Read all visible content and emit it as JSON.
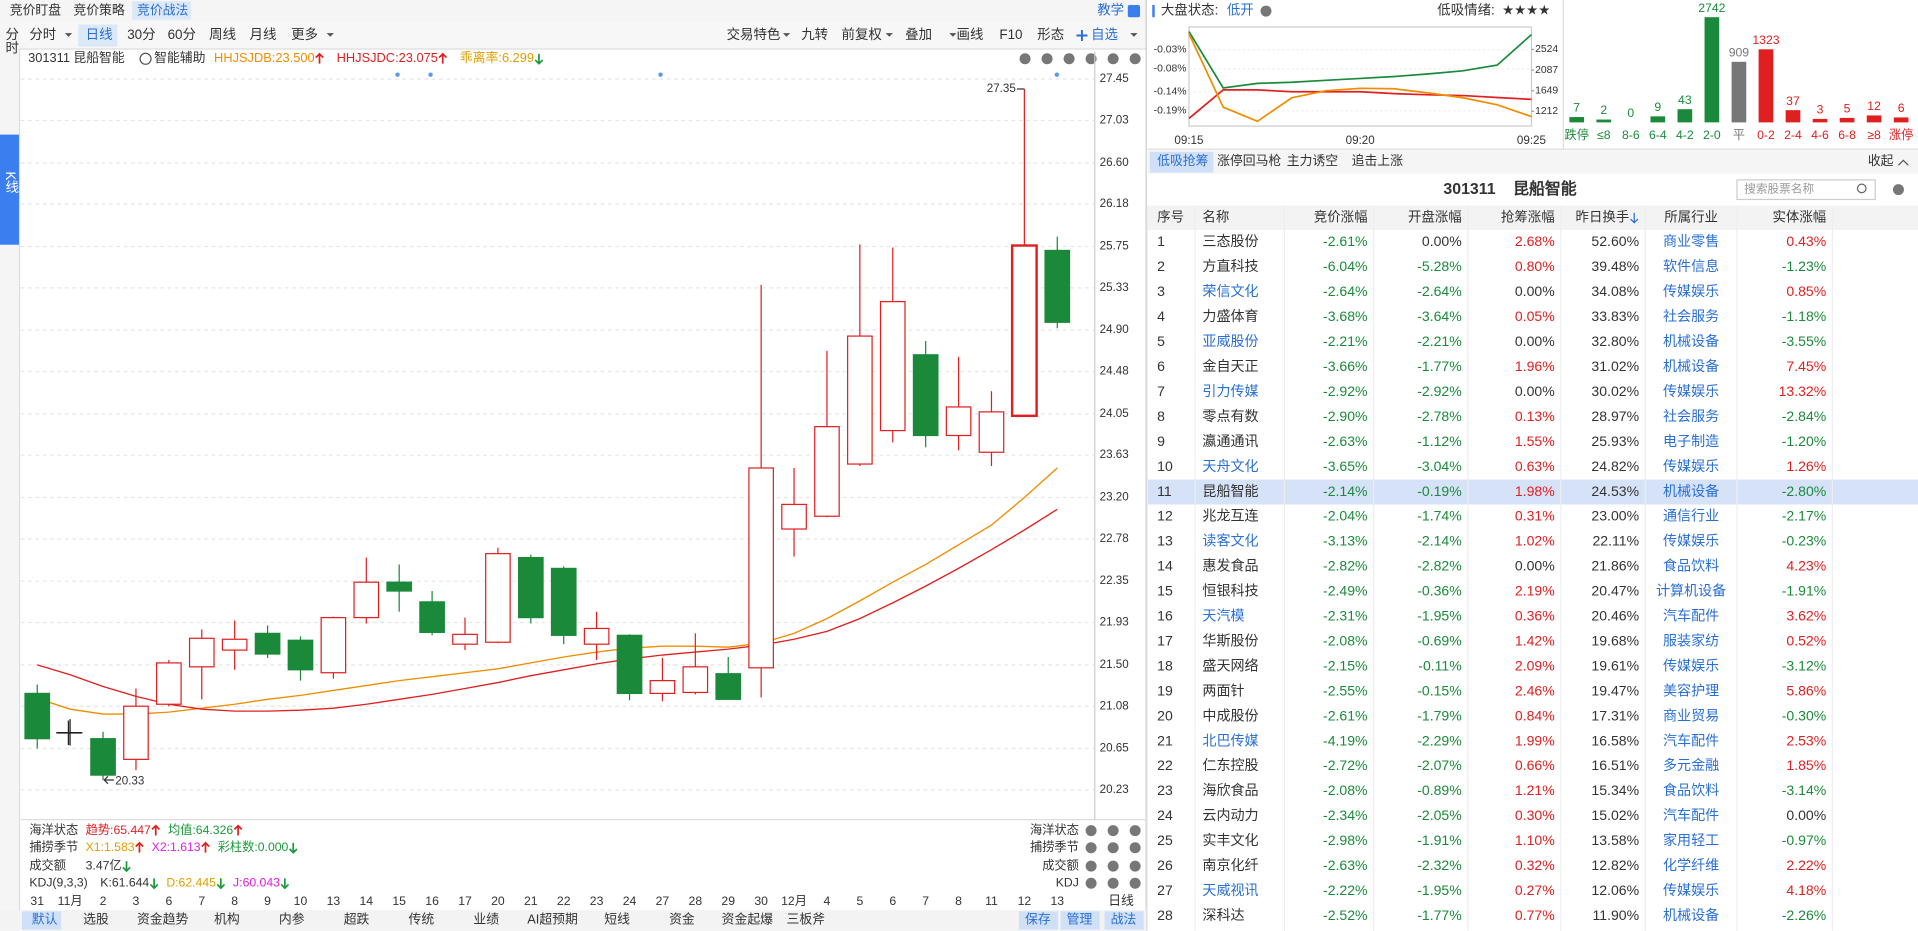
{
  "top_tabs": [
    "竞价盯盘",
    "竞价策略",
    "竞价战法"
  ],
  "teach": "教学",
  "side_tabs": [
    "分时",
    "K线"
  ],
  "periods": [
    "分时",
    "日线",
    "30分",
    "60分",
    "周线",
    "月线",
    "更多"
  ],
  "tools": [
    "交易特色",
    "九转",
    "前复权",
    "叠加",
    "画线",
    "F10",
    "形态",
    "自选"
  ],
  "stock": {
    "code": "301311",
    "name": "昆船智能",
    "assist": "智能辅助",
    "indicators": [
      {
        "text": "HHJSJDB:23.500",
        "color": "#f08c00",
        "dir": "up"
      },
      {
        "text": "HHJSJDC:23.075",
        "color": "#e02020",
        "dir": "up"
      },
      {
        "text": "乖离率:6.299",
        "color": "#e0a000",
        "dir": "down"
      }
    ]
  },
  "indicator_rows": [
    {
      "label": "海洋状态",
      "items": [
        {
          "text": "趋势:65.447",
          "color": "#e02020",
          "dir": "up"
        },
        {
          "text": "均值:64.326",
          "color": "#1a9a3a",
          "dir": "up"
        }
      ]
    },
    {
      "label": "捕捞季节",
      "items": [
        {
          "text": "X1:1.583",
          "color": "#e0a000",
          "dir": "up"
        },
        {
          "text": "X2:1.613",
          "color": "#e020e0",
          "dir": "up"
        },
        {
          "text": "彩柱数:0.000",
          "color": "#1a9a3a",
          "dir": "down"
        }
      ]
    },
    {
      "label": "成交额",
      "items": [
        {
          "text": "3.47亿",
          "color": "#333333",
          "dir": "down"
        }
      ]
    },
    {
      "label": "KDJ(9,3,3)",
      "items": [
        {
          "text": "K:61.644",
          "color": "#333333",
          "dir": "down"
        },
        {
          "text": "D:62.445",
          "color": "#e0a000",
          "dir": "down"
        },
        {
          "text": "J:60.043",
          "color": "#e020e0",
          "dir": "down"
        }
      ]
    }
  ],
  "right_labels": [
    "海洋状态",
    "捕捞季节",
    "成交额",
    "KDJ"
  ],
  "bottom_tabs": [
    "默认",
    "选股",
    "资金趋势",
    "机构",
    "内参",
    "超跌",
    "传统",
    "业绩",
    "AI超预期",
    "短线",
    "资金",
    "资金起爆",
    "三板斧"
  ],
  "bottom_right": [
    "保存",
    "管理"
  ],
  "period_label": "日线",
  "strategy": "战法",
  "market": {
    "label": "大盘状态:",
    "state": "低开",
    "mood_label": "低吸情绪:",
    "mood": "★★★★"
  },
  "chart_data": [
    {
      "type": "candlestick",
      "categories": [
        "31",
        "11月",
        "2",
        "3",
        "6",
        "7",
        "8",
        "9",
        "10",
        "13",
        "14",
        "15",
        "16",
        "17",
        "20",
        "21",
        "22",
        "23",
        "24",
        "27",
        "28",
        "29",
        "30",
        "12月",
        "4",
        "5",
        "6",
        "7",
        "8",
        "11",
        "12",
        "13"
      ],
      "open": [
        21.21,
        20.81,
        20.75,
        20.54,
        21.1,
        21.48,
        21.65,
        21.82,
        21.75,
        21.42,
        21.98,
        22.34,
        22.14,
        21.71,
        21.73,
        22.59,
        22.48,
        21.71,
        21.8,
        21.21,
        21.22,
        21.41,
        21.47,
        22.88,
        23.01,
        23.54,
        23.88,
        24.65,
        23.83,
        23.66,
        24.03,
        25.71
      ],
      "high": [
        21.3,
        20.95,
        20.82,
        21.26,
        21.55,
        21.86,
        21.95,
        21.9,
        21.79,
        21.99,
        22.59,
        22.52,
        22.25,
        21.98,
        22.69,
        22.62,
        22.5,
        22.04,
        21.81,
        21.57,
        21.82,
        21.58,
        25.36,
        23.5,
        24.69,
        25.77,
        25.74,
        24.79,
        24.63,
        24.28,
        27.35,
        25.85
      ],
      "low": [
        20.65,
        20.68,
        20.33,
        20.43,
        21.08,
        21.15,
        21.45,
        21.57,
        21.34,
        21.36,
        21.92,
        22.04,
        21.8,
        21.65,
        21.72,
        21.92,
        21.71,
        21.55,
        21.14,
        21.13,
        21.2,
        21.15,
        21.17,
        22.6,
        23.0,
        23.52,
        23.76,
        23.71,
        23.68,
        23.52,
        24.03,
        24.92
      ],
      "close": [
        20.75,
        20.81,
        20.38,
        21.08,
        21.52,
        21.77,
        21.76,
        21.61,
        21.45,
        21.98,
        22.34,
        22.25,
        21.83,
        21.81,
        22.63,
        21.98,
        21.8,
        21.87,
        21.21,
        21.34,
        21.48,
        21.15,
        23.5,
        23.13,
        23.92,
        24.84,
        25.19,
        23.83,
        24.12,
        24.07,
        25.76,
        24.98
      ],
      "lines": [
        {
          "color": "#f08c00",
          "values": [
            21.16,
            21.05,
            21.0,
            21.0,
            21.02,
            21.06,
            21.1,
            21.15,
            21.19,
            21.24,
            21.29,
            21.34,
            21.38,
            21.42,
            21.46,
            21.52,
            21.58,
            21.63,
            21.67,
            21.69,
            21.69,
            21.68,
            21.72,
            21.82,
            21.97,
            22.15,
            22.34,
            22.52,
            22.72,
            22.92,
            23.2,
            23.5
          ]
        },
        {
          "color": "#e02020",
          "values": [
            21.5,
            21.4,
            21.28,
            21.18,
            21.1,
            21.05,
            21.03,
            21.03,
            21.04,
            21.06,
            21.1,
            21.15,
            21.2,
            21.26,
            21.32,
            21.39,
            21.45,
            21.51,
            21.56,
            21.6,
            21.63,
            21.66,
            21.7,
            21.76,
            21.84,
            21.97,
            22.13,
            22.3,
            22.48,
            22.67,
            22.87,
            23.08
          ]
        }
      ],
      "up_color": "#e02020",
      "down_color": "#1a8a3a",
      "flat_color": "#333333",
      "ylim": [
        19.99,
        27.57
      ],
      "yticks": [
        27.45,
        27.03,
        {
          "value": 26.6,
          "label": "26.60"
        },
        26.18,
        25.75,
        25.33,
        {
          "value": 24.9,
          "label": "24.90"
        },
        24.48,
        24.05,
        23.63,
        {
          "value": 23.2,
          "label": "23.20"
        },
        22.78,
        22.35,
        21.93,
        {
          "value": 21.5,
          "label": "21.50"
        },
        21.08,
        20.65,
        20.23
      ],
      "grid": true
    },
    {
      "type": "line",
      "categories": [
        "09:15",
        null,
        null,
        null,
        null,
        "09:20",
        null,
        null,
        null,
        null,
        "09:25"
      ],
      "series": [
        {
          "color": "#1a8a3a",
          "values": [
            0.018,
            -0.13,
            -0.118,
            -0.115,
            -0.11,
            -0.105,
            -0.1,
            -0.093,
            -0.085,
            -0.07,
            0.01
          ]
        },
        {
          "color": "#e02020",
          "values": [
            -0.21,
            -0.135,
            -0.135,
            -0.14,
            -0.14,
            -0.14,
            -0.145,
            -0.148,
            -0.15,
            -0.155,
            -0.16
          ]
        },
        {
          "color": "#f08c00",
          "axis": "y2",
          "values": [
            2860,
            1300,
            1000,
            1500,
            1650,
            1700,
            1690,
            1600,
            1500,
            1350,
            1100
          ]
        }
      ],
      "ylim": [
        -0.23,
        0.03
      ],
      "yticks": [
        {
          "value": -0.03,
          "label": "-0.03%"
        },
        {
          "value": -0.08,
          "label": "-0.08%"
        },
        {
          "value": -0.14,
          "label": "-0.14%"
        },
        {
          "value": -0.19,
          "label": "-0.19%"
        }
      ],
      "y2lim": [
        900,
        3000
      ],
      "y2ticks": [
        2524,
        2087,
        1649,
        1212
      ],
      "grid": true
    },
    {
      "type": "bar",
      "scale": "sqrt",
      "categories": [
        "跌停",
        "≤8",
        "8-6",
        "6-4",
        "4-2",
        "2-0",
        "平",
        "0-2",
        "2-4",
        "4-6",
        "6-8",
        "≥8",
        "涨停"
      ],
      "values": [
        7,
        2,
        0,
        9,
        43,
        2742,
        909,
        1323,
        37,
        3,
        5,
        12,
        6
      ],
      "colors": [
        "#1a8a3a",
        "#1a8a3a",
        "#1a8a3a",
        "#1a8a3a",
        "#1a8a3a",
        "#1a8a3a",
        "#777777",
        "#e02020",
        "#e02020",
        "#e02020",
        "#e02020",
        "#e02020",
        "#e02020"
      ]
    }
  ],
  "table": {
    "tabs": [
      "低吸抢筹",
      "涨停回马枪",
      "主力诱空",
      "追击上涨"
    ],
    "collapse": "收起",
    "search": "搜索股票名称",
    "columns": [
      "序号",
      "名称",
      "竞价涨幅",
      "开盘涨幅",
      "抢筹涨幅",
      "昨日换手",
      "所属行业",
      "实体涨幅"
    ],
    "rows": [
      [
        "1",
        "三态股份",
        "-2.61%",
        "0.00%",
        "2.68%",
        "52.60%",
        "商业零售",
        "0.43%"
      ],
      [
        "2",
        "方直科技",
        "-6.04%",
        "-5.28%",
        "0.80%",
        "39.48%",
        "软件信息",
        "-1.23%"
      ],
      [
        "3",
        "荣信文化",
        "-2.64%",
        "-2.64%",
        "0.00%",
        "34.08%",
        "传媒娱乐",
        "0.85%"
      ],
      [
        "4",
        "力盛体育",
        "-3.68%",
        "-3.64%",
        "0.05%",
        "33.83%",
        "社会服务",
        "-1.18%"
      ],
      [
        "5",
        "亚威股份",
        "-2.21%",
        "-2.21%",
        "0.00%",
        "32.80%",
        "机械设备",
        "-3.55%"
      ],
      [
        "6",
        "金自天正",
        "-3.66%",
        "-1.77%",
        "1.96%",
        "31.02%",
        "机械设备",
        "7.45%"
      ],
      [
        "7",
        "引力传媒",
        "-2.92%",
        "-2.92%",
        "0.00%",
        "30.02%",
        "传媒娱乐",
        "13.32%"
      ],
      [
        "8",
        "零点有数",
        "-2.90%",
        "-2.78%",
        "0.13%",
        "28.97%",
        "社会服务",
        "-2.84%"
      ],
      [
        "9",
        "瀛通通讯",
        "-2.63%",
        "-1.12%",
        "1.55%",
        "25.93%",
        "电子制造",
        "-1.20%"
      ],
      [
        "10",
        "天舟文化",
        "-3.65%",
        "-3.04%",
        "0.63%",
        "24.82%",
        "传媒娱乐",
        "1.26%"
      ],
      [
        "11",
        "昆船智能",
        "-2.14%",
        "-0.19%",
        "1.98%",
        "24.53%",
        "机械设备",
        "-2.80%"
      ],
      [
        "12",
        "兆龙互连",
        "-2.04%",
        "-1.74%",
        "0.31%",
        "23.00%",
        "通信行业",
        "-2.17%"
      ],
      [
        "13",
        "读客文化",
        "-3.13%",
        "-2.14%",
        "1.02%",
        "22.11%",
        "传媒娱乐",
        "-0.23%"
      ],
      [
        "14",
        "惠发食品",
        "-2.82%",
        "-2.82%",
        "0.00%",
        "21.86%",
        "食品饮料",
        "4.23%"
      ],
      [
        "15",
        "恒银科技",
        "-2.49%",
        "-0.36%",
        "2.19%",
        "20.47%",
        "计算机设备",
        "-1.91%"
      ],
      [
        "16",
        "天汽模",
        "-2.31%",
        "-1.95%",
        "0.36%",
        "20.46%",
        "汽车配件",
        "3.62%"
      ],
      [
        "17",
        "华斯股份",
        "-2.08%",
        "-0.69%",
        "1.42%",
        "19.68%",
        "服装家纺",
        "0.52%"
      ],
      [
        "18",
        "盛天网络",
        "-2.15%",
        "-0.11%",
        "2.09%",
        "19.61%",
        "传媒娱乐",
        "-3.12%"
      ],
      [
        "19",
        "两面针",
        "-2.55%",
        "-0.15%",
        "2.46%",
        "19.47%",
        "美容护理",
        "5.86%"
      ],
      [
        "20",
        "中成股份",
        "-2.61%",
        "-1.79%",
        "0.84%",
        "17.31%",
        "商业贸易",
        "-0.30%"
      ],
      [
        "21",
        "北巴传媒",
        "-4.19%",
        "-2.29%",
        "1.99%",
        "16.58%",
        "汽车配件",
        "2.53%"
      ],
      [
        "22",
        "仁东控股",
        "-2.72%",
        "-2.07%",
        "0.66%",
        "16.51%",
        "多元金融",
        "1.85%"
      ],
      [
        "23",
        "海欣食品",
        "-2.08%",
        "-0.89%",
        "1.21%",
        "15.34%",
        "食品饮料",
        "-3.14%"
      ],
      [
        "24",
        "云内动力",
        "-2.34%",
        "-2.05%",
        "0.30%",
        "15.02%",
        "汽车配件",
        "0.00%"
      ],
      [
        "25",
        "实丰文化",
        "-2.98%",
        "-1.91%",
        "1.10%",
        "13.58%",
        "家用轻工",
        "-0.97%"
      ],
      [
        "26",
        "南京化纤",
        "-2.63%",
        "-2.32%",
        "0.32%",
        "12.82%",
        "化学纤维",
        "2.22%"
      ],
      [
        "27",
        "天威视讯",
        "-2.22%",
        "-1.95%",
        "0.27%",
        "12.06%",
        "传媒娱乐",
        "4.18%"
      ],
      [
        "28",
        "深科达",
        "-2.52%",
        "-1.77%",
        "0.77%",
        "11.90%",
        "机械设备",
        "-2.26%"
      ]
    ],
    "link_rows": [
      2,
      4,
      6,
      9,
      12,
      15,
      20,
      26
    ],
    "highlight_row": 10
  }
}
